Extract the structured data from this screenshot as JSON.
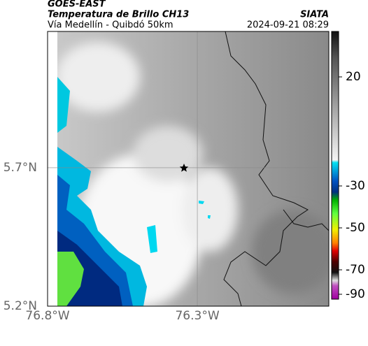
{
  "header": {
    "source": "GOES-EAST",
    "title": "Temperatura de Brillo CH13",
    "subtitle": "Vía Medellín - Quibdó 50km",
    "org": "SIATA",
    "datetime": "2024-09-21 08:29"
  },
  "map": {
    "xlim": [
      -76.8,
      -75.861
    ],
    "ylim": [
      5.2,
      6.192
    ],
    "xticks": [
      {
        "value": -76.8,
        "label": "76.8°W"
      },
      {
        "value": -76.3,
        "label": "76.3°W"
      }
    ],
    "yticks": [
      {
        "value": 5.7,
        "label": "5.7°N"
      },
      {
        "value": 5.2,
        "label": "5.2°N"
      }
    ]
  },
  "colorbar": {
    "ticks": [
      20,
      -30,
      -50,
      -70,
      -90
    ]
  }
}
